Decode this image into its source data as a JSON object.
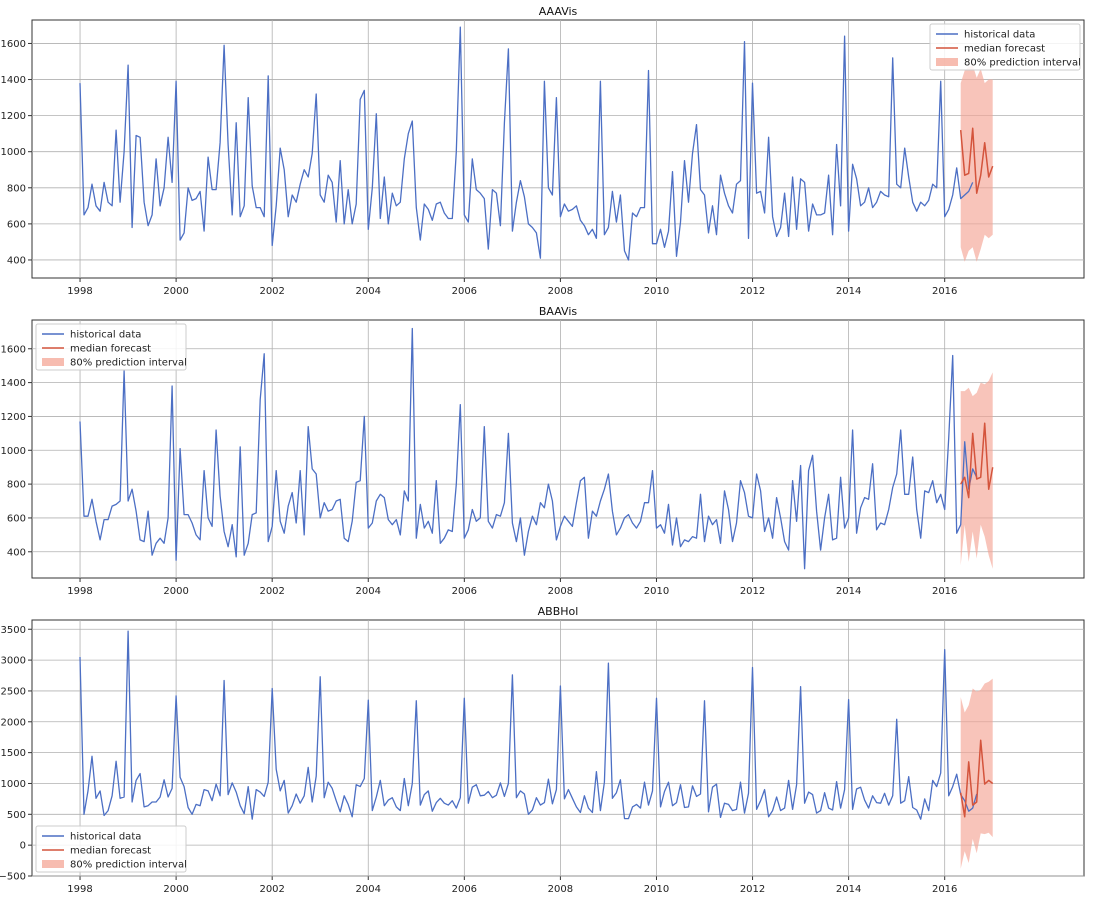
{
  "chart_data": [
    {
      "type": "line",
      "title": "AAAVis",
      "xlim": [
        1997.0,
        2018.9
      ],
      "ylim": [
        300,
        1730
      ],
      "x_ticks": [
        1998,
        2000,
        2002,
        2004,
        2006,
        2008,
        2010,
        2012,
        2014,
        2016
      ],
      "y_ticks": [
        400,
        600,
        800,
        1000,
        1200,
        1400,
        1600
      ],
      "legend_position": "top-right",
      "legend": [
        "historical data",
        "median forecast",
        "80% prediction interval"
      ],
      "grid": true,
      "historical": {
        "start": "1998-01",
        "values": [
          1380,
          650,
          690,
          820,
          700,
          670,
          830,
          720,
          700,
          1120,
          720,
          1000,
          1480,
          580,
          1090,
          1080,
          720,
          590,
          650,
          960,
          700,
          800,
          1080,
          830,
          1390,
          510,
          550,
          800,
          730,
          740,
          780,
          560,
          970,
          790,
          790,
          1050,
          1590,
          1040,
          650,
          1160,
          640,
          700,
          1300,
          810,
          690,
          690,
          640,
          1420,
          480,
          700,
          1020,
          900,
          640,
          760,
          720,
          820,
          900,
          860,
          990,
          1320,
          760,
          720,
          870,
          830,
          610,
          950,
          600,
          790,
          600,
          710,
          1290,
          1340,
          570,
          800,
          1210,
          630,
          860,
          600,
          770,
          700,
          720,
          960,
          1100,
          1170,
          690,
          510,
          710,
          680,
          620,
          710,
          720,
          660,
          630,
          630,
          1000,
          1690,
          650,
          610,
          960,
          790,
          770,
          740,
          460,
          790,
          770,
          590,
          1160,
          1570,
          560,
          720,
          840,
          750,
          600,
          580,
          550,
          410,
          1390,
          800,
          760,
          1300,
          640,
          710,
          670,
          680,
          700,
          620,
          590,
          540,
          570,
          520,
          1390,
          540,
          580,
          780,
          610,
          760,
          450,
          400,
          660,
          640,
          690,
          690,
          1450,
          490,
          490,
          570,
          470,
          560,
          890,
          420,
          610,
          950,
          720,
          990,
          1150,
          790,
          760,
          550,
          700,
          540,
          870,
          770,
          700,
          660,
          820,
          840,
          1610,
          520,
          1380,
          770,
          780,
          660,
          1080,
          640,
          530,
          580,
          770,
          530,
          860,
          570,
          850,
          830,
          560,
          710,
          650,
          650,
          660,
          870,
          540,
          1040,
          700,
          1640,
          560,
          930,
          850,
          700,
          720,
          800,
          690,
          720,
          780,
          760,
          750,
          1520,
          820,
          800,
          1020,
          860,
          720,
          670,
          720,
          700,
          730,
          820,
          800,
          1390,
          640,
          680,
          760,
          910,
          740,
          760,
          780,
          830
        ],
        "color": "#4c6fc4"
      },
      "forecast": {
        "start": "2016-05",
        "median": [
          1120,
          870,
          880,
          1130,
          770,
          870,
          1050,
          860,
          920
        ],
        "lower": [
          470,
          390,
          450,
          470,
          390,
          460,
          540,
          520,
          540
        ],
        "upper": [
          1380,
          1450,
          1470,
          1480,
          1410,
          1460,
          1380,
          1400,
          1400
        ],
        "median_color": "#d4543c",
        "band_color": "#f4a595"
      }
    },
    {
      "type": "line",
      "title": "BAAVis",
      "xlim": [
        1997.0,
        2018.9
      ],
      "ylim": [
        245,
        1770
      ],
      "x_ticks": [
        1998,
        2000,
        2002,
        2004,
        2006,
        2008,
        2010,
        2012,
        2014,
        2016
      ],
      "y_ticks": [
        400,
        600,
        800,
        1000,
        1200,
        1400,
        1600
      ],
      "legend_position": "top-left",
      "legend": [
        "historical data",
        "median forecast",
        "80% prediction interval"
      ],
      "grid": true,
      "historical": {
        "start": "1998-01",
        "values": [
          1170,
          610,
          610,
          710,
          580,
          470,
          590,
          590,
          670,
          680,
          700,
          1470,
          700,
          770,
          640,
          470,
          460,
          640,
          380,
          450,
          480,
          450,
          600,
          1380,
          350,
          1010,
          620,
          620,
          570,
          500,
          470,
          880,
          600,
          550,
          1120,
          730,
          520,
          430,
          560,
          370,
          1020,
          380,
          450,
          620,
          630,
          1300,
          1570,
          460,
          550,
          880,
          580,
          510,
          670,
          750,
          570,
          880,
          500,
          1140,
          890,
          860,
          600,
          690,
          640,
          650,
          700,
          710,
          480,
          460,
          580,
          810,
          820,
          1200,
          540,
          570,
          700,
          740,
          720,
          590,
          560,
          590,
          500,
          760,
          700,
          1720,
          480,
          680,
          540,
          580,
          510,
          820,
          450,
          480,
          530,
          520,
          800,
          1270,
          480,
          530,
          650,
          580,
          600,
          1140,
          580,
          540,
          620,
          610,
          690,
          1100,
          570,
          460,
          600,
          380,
          520,
          610,
          560,
          690,
          660,
          800,
          700,
          470,
          550,
          610,
          580,
          550,
          690,
          820,
          840,
          480,
          640,
          610,
          700,
          770,
          860,
          640,
          500,
          540,
          600,
          620,
          570,
          540,
          580,
          690,
          690,
          880,
          540,
          560,
          510,
          680,
          440,
          600,
          430,
          470,
          460,
          490,
          480,
          740,
          460,
          610,
          560,
          590,
          450,
          760,
          650,
          460,
          570,
          820,
          750,
          610,
          600,
          860,
          760,
          520,
          600,
          480,
          720,
          600,
          460,
          410,
          820,
          580,
          910,
          300,
          880,
          970,
          640,
          410,
          600,
          740,
          470,
          480,
          840,
          540,
          600,
          1120,
          510,
          660,
          720,
          710,
          920,
          530,
          570,
          560,
          650,
          780,
          860,
          1120,
          740,
          740,
          960,
          650,
          480,
          760,
          750,
          820,
          690,
          740,
          650,
          1070,
          1560,
          510,
          560,
          1050,
          770,
          890,
          840
        ],
        "color": "#4c6fc4"
      },
      "forecast": {
        "start": "2016-05",
        "median": [
          800,
          840,
          720,
          1100,
          830,
          840,
          1160,
          770,
          900
        ],
        "lower": [
          320,
          560,
          340,
          520,
          360,
          560,
          490,
          380,
          300
        ],
        "upper": [
          1350,
          1350,
          1370,
          1320,
          1340,
          1400,
          1390,
          1410,
          1460
        ],
        "median_color": "#d4543c",
        "band_color": "#f4a595"
      }
    },
    {
      "type": "line",
      "title": "ABBHol",
      "xlim": [
        1997.0,
        2018.9
      ],
      "ylim": [
        -500,
        3650
      ],
      "x_ticks": [
        1998,
        2000,
        2002,
        2004,
        2006,
        2008,
        2010,
        2012,
        2014,
        2016
      ],
      "y_ticks": [
        -500,
        0,
        500,
        1000,
        1500,
        2000,
        2500,
        3000,
        3500
      ],
      "legend_position": "bottom-left",
      "legend": [
        "historical data",
        "median forecast",
        "80% prediction interval"
      ],
      "grid": true,
      "historical": {
        "start": "1998-01",
        "values": [
          3050,
          500,
          880,
          1440,
          760,
          880,
          480,
          560,
          800,
          1360,
          760,
          780,
          3470,
          700,
          1050,
          1160,
          620,
          640,
          700,
          700,
          780,
          1060,
          780,
          920,
          2420,
          1100,
          950,
          610,
          500,
          660,
          640,
          900,
          880,
          720,
          990,
          800,
          2670,
          820,
          1010,
          860,
          640,
          510,
          950,
          420,
          900,
          860,
          790,
          1020,
          2540,
          1230,
          880,
          1050,
          520,
          640,
          830,
          680,
          800,
          1260,
          700,
          1120,
          2730,
          770,
          1020,
          920,
          720,
          540,
          800,
          660,
          460,
          980,
          950,
          1080,
          2350,
          560,
          780,
          1050,
          640,
          730,
          770,
          620,
          560,
          1080,
          640,
          1000,
          2340,
          650,
          820,
          880,
          550,
          690,
          760,
          680,
          650,
          720,
          600,
          770,
          2380,
          680,
          940,
          980,
          800,
          810,
          870,
          770,
          810,
          1010,
          790,
          1000,
          2760,
          770,
          880,
          830,
          500,
          570,
          770,
          650,
          690,
          1070,
          670,
          900,
          2580,
          750,
          900,
          760,
          620,
          530,
          800,
          600,
          530,
          1190,
          560,
          1020,
          2950,
          760,
          850,
          1060,
          430,
          430,
          620,
          660,
          600,
          1020,
          650,
          880,
          2380,
          620,
          870,
          1020,
          640,
          690,
          980,
          610,
          620,
          960,
          790,
          830,
          2340,
          540,
          940,
          990,
          450,
          680,
          660,
          560,
          580,
          1020,
          520,
          840,
          2880,
          580,
          720,
          900,
          460,
          560,
          780,
          560,
          600,
          1050,
          580,
          980,
          2570,
          680,
          860,
          820,
          520,
          560,
          850,
          600,
          570,
          1030,
          600,
          900,
          2360,
          580,
          910,
          940,
          730,
          600,
          800,
          690,
          680,
          840,
          650,
          800,
          2040,
          680,
          720,
          1110,
          610,
          570,
          420,
          750,
          560,
          1050,
          950,
          1170,
          3170,
          800,
          950,
          1150,
          820,
          720,
          550,
          600,
          830
        ],
        "color": "#4c6fc4"
      },
      "forecast": {
        "start": "2016-05",
        "median": [
          850,
          460,
          1350,
          650,
          700,
          1700,
          990,
          1050,
          1000
        ],
        "lower": [
          -380,
          -100,
          -290,
          100,
          -130,
          190,
          180,
          200,
          130
        ],
        "upper": [
          2400,
          2150,
          2270,
          2540,
          2490,
          2520,
          2620,
          2650,
          2700
        ],
        "median_color": "#d4543c",
        "band_color": "#f4a595"
      }
    }
  ]
}
